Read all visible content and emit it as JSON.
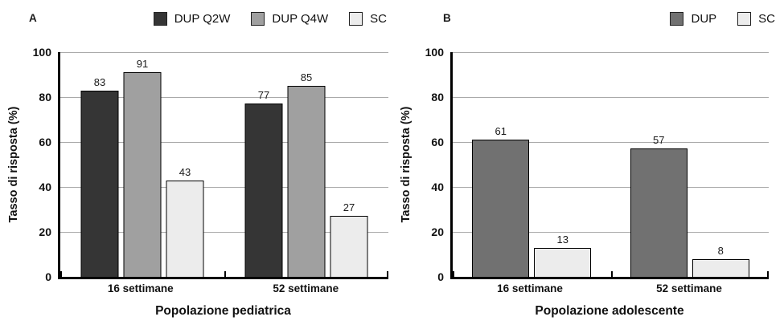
{
  "chart_data": [
    {
      "type": "bar",
      "panel_label": "A",
      "title": "Popolazione pediatrica",
      "ylabel": "Tasso di risposta (%)",
      "categories": [
        "16 settimane",
        "52 settimane"
      ],
      "series": [
        {
          "name": "DUP Q2W",
          "color": "#353535",
          "values": [
            83,
            77
          ]
        },
        {
          "name": "DUP Q4W",
          "color": "#a0a0a0",
          "values": [
            91,
            85
          ]
        },
        {
          "name": "SC",
          "color": "#ececec",
          "values": [
            43,
            27
          ]
        }
      ],
      "ylim": [
        0,
        100
      ],
      "yticks": [
        0,
        20,
        40,
        60,
        80,
        100
      ],
      "grid": true,
      "legend_position": "top-right"
    },
    {
      "type": "bar",
      "panel_label": "B",
      "title": "Popolazione adolescente",
      "ylabel": "Tasso di risposta (%)",
      "categories": [
        "16 settimane",
        "52 settimane"
      ],
      "series": [
        {
          "name": "DUP",
          "color": "#717171",
          "values": [
            61,
            57
          ]
        },
        {
          "name": "SC",
          "color": "#ececec",
          "values": [
            13,
            8
          ]
        }
      ],
      "ylim": [
        0,
        100
      ],
      "yticks": [
        0,
        20,
        40,
        60,
        80,
        100
      ],
      "grid": true,
      "legend_position": "top-right"
    }
  ]
}
